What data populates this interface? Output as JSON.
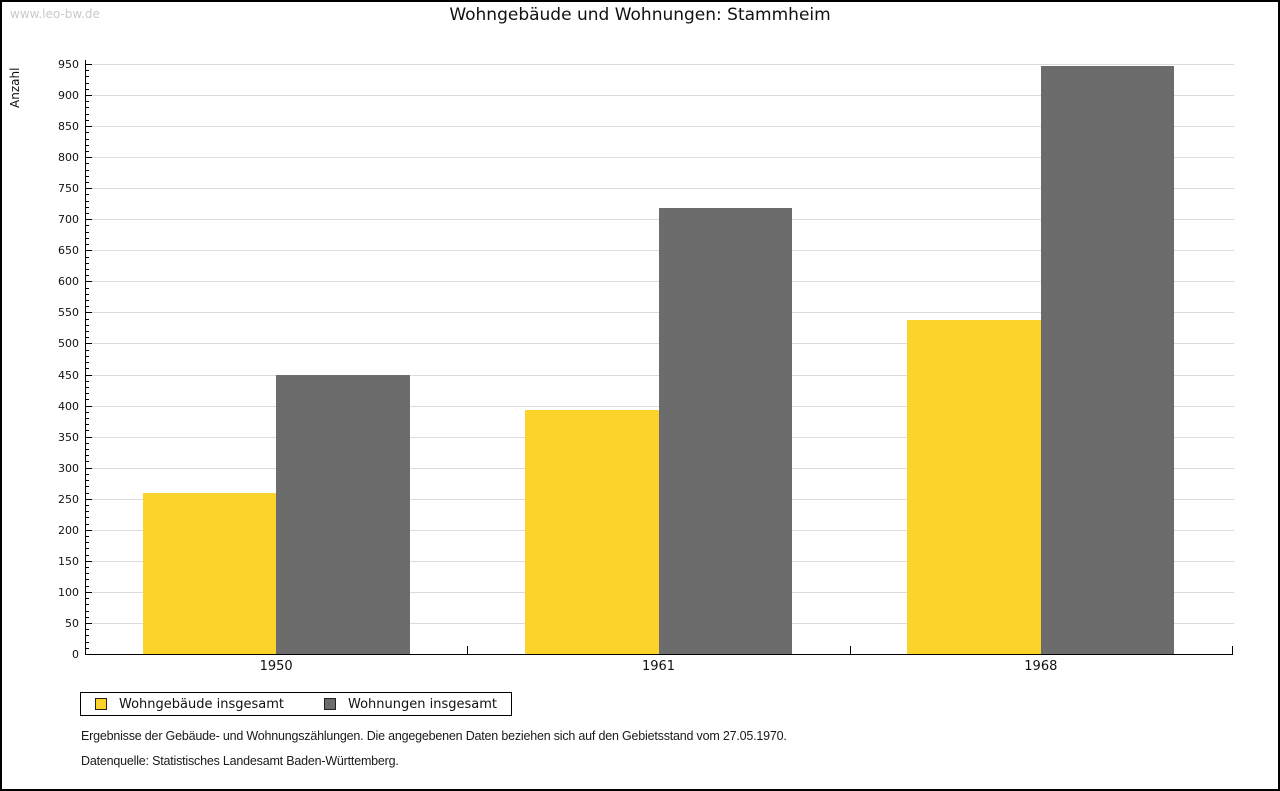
{
  "watermark": "www.leo-bw.de",
  "title": "Wohngebäude und Wohnungen: Stammheim",
  "chart_data": {
    "type": "bar",
    "title": "Wohngebäude und Wohnungen: Stammheim",
    "xlabel": "",
    "ylabel": "Anzahl",
    "categories": [
      "1950",
      "1961",
      "1968"
    ],
    "series": [
      {
        "name": "Wohngebäude insgesamt",
        "color": "#fcd32b",
        "values": [
          260,
          393,
          538
        ]
      },
      {
        "name": "Wohnungen insgesamt",
        "color": "#6c6c6c",
        "values": [
          450,
          718,
          947
        ]
      }
    ],
    "ylim": [
      0,
      950
    ],
    "ytick_step": 50,
    "ytick_minor_step": 10,
    "grid": true,
    "gridline_color": "#dcdcdc",
    "legend_position": "bottom-left"
  },
  "footnotes": {
    "line1": "Ergebnisse der Gebäude- und Wohnungszählungen. Die angegebenen Daten beziehen sich auf den Gebietsstand vom 27.05.1970.",
    "line2": "Datenquelle: Statistisches Landesamt Baden-Württemberg."
  }
}
